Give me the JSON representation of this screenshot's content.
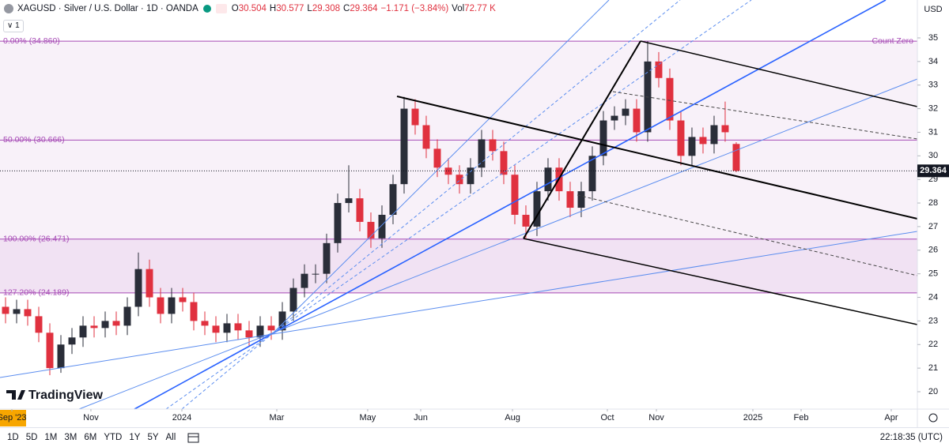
{
  "header": {
    "symbol": "XAGUSD · Silver / U.S. Dollar · 1D · OANDA",
    "quote": [
      {
        "key": "O",
        "text": "30.504"
      },
      {
        "key": "H",
        "text": "30.577"
      },
      {
        "key": "L",
        "text": "29.308"
      },
      {
        "key": "C",
        "text": "29.364"
      },
      {
        "text": "−1.171 (−3.84%)"
      },
      {
        "key": "Vol",
        "text": "72.77 K"
      }
    ],
    "indicator_count": "1"
  },
  "currency": "USD",
  "ranges": [
    "1D",
    "5D",
    "1M",
    "3M",
    "6M",
    "YTD",
    "1Y",
    "5Y",
    "All"
  ],
  "clock": "22:18:35 (UTC)",
  "logo": "TradingView",
  "chart_data": {
    "type": "candlestick",
    "open": [
      23.6,
      23.3,
      23.5,
      23.2,
      22.5,
      21.0,
      22.0,
      22.3,
      22.8,
      22.7,
      23.0,
      22.8,
      23.6,
      25.2,
      24.0,
      23.3,
      24.0,
      23.8,
      23.0,
      22.8,
      22.5,
      22.9,
      22.6,
      22.3,
      22.8,
      22.6,
      23.4,
      24.4,
      25.0,
      25.0,
      26.3,
      28.0,
      28.2,
      27.2,
      26.5,
      27.5,
      28.8,
      32.0,
      31.3,
      30.3,
      29.5,
      29.2,
      28.8,
      29.5,
      30.7,
      30.2,
      29.2,
      27.5,
      27.0,
      28.5,
      29.5,
      28.5,
      27.8,
      28.5,
      30.0,
      31.5,
      31.7,
      32.0,
      31.0,
      34.0,
      33.3,
      31.5,
      30.0,
      30.8,
      30.5,
      31.3,
      30.504
    ],
    "high": [
      24.0,
      23.9,
      23.9,
      23.6,
      22.9,
      22.4,
      22.7,
      23.2,
      23.2,
      23.4,
      23.4,
      24.0,
      25.9,
      25.6,
      24.4,
      24.4,
      24.4,
      24.2,
      23.4,
      23.2,
      23.3,
      23.3,
      23.0,
      23.2,
      23.2,
      23.8,
      24.8,
      25.4,
      25.4,
      26.7,
      28.4,
      29.6,
      28.6,
      27.6,
      27.9,
      29.2,
      32.5,
      32.4,
      31.7,
      30.7,
      29.9,
      29.6,
      29.9,
      31.1,
      31.1,
      30.6,
      29.6,
      27.9,
      28.9,
      29.9,
      29.9,
      28.9,
      28.9,
      30.4,
      31.9,
      32.1,
      32.4,
      32.4,
      34.86,
      34.4,
      33.7,
      31.9,
      31.2,
      31.2,
      31.7,
      32.3,
      30.577
    ],
    "low": [
      22.9,
      22.9,
      22.8,
      22.1,
      20.7,
      20.8,
      21.6,
      21.9,
      22.3,
      22.3,
      22.4,
      22.4,
      23.2,
      23.6,
      22.9,
      22.9,
      23.4,
      22.6,
      22.4,
      22.1,
      22.1,
      22.2,
      21.9,
      21.9,
      22.2,
      22.2,
      23.0,
      24.0,
      24.6,
      24.6,
      25.9,
      27.6,
      26.8,
      26.1,
      26.1,
      27.1,
      28.4,
      30.9,
      29.9,
      29.1,
      28.8,
      28.4,
      28.4,
      29.1,
      29.8,
      28.8,
      27.1,
      26.5,
      26.6,
      28.1,
      28.1,
      27.4,
      27.4,
      28.1,
      29.6,
      31.1,
      31.3,
      30.6,
      30.6,
      32.9,
      31.1,
      29.6,
      29.6,
      30.1,
      30.1,
      30.6,
      29.308
    ],
    "close": [
      23.3,
      23.5,
      23.2,
      22.5,
      21.0,
      22.0,
      22.3,
      22.8,
      22.7,
      23.0,
      22.8,
      23.6,
      25.2,
      24.0,
      23.3,
      24.0,
      23.8,
      23.0,
      22.8,
      22.5,
      22.9,
      22.6,
      22.3,
      22.8,
      22.6,
      23.4,
      24.4,
      25.0,
      25.0,
      26.3,
      28.0,
      28.2,
      27.2,
      26.5,
      27.5,
      28.8,
      32.0,
      31.3,
      30.3,
      29.5,
      29.2,
      28.8,
      29.5,
      30.7,
      30.2,
      29.2,
      27.5,
      27.0,
      28.5,
      29.5,
      28.5,
      27.8,
      28.5,
      30.0,
      31.5,
      31.7,
      32.0,
      31.0,
      34.0,
      33.3,
      31.5,
      30.0,
      30.8,
      30.5,
      31.3,
      31.0,
      29.364
    ],
    "up_color": "#2a2e39",
    "down_color": "#e0313f",
    "xlim": [
      0,
      82.86
    ],
    "xticks": [
      {
        "value": 1.07,
        "label": "Sep '23"
      },
      {
        "value": 8.21,
        "label": "Nov"
      },
      {
        "value": 16.43,
        "label": "2024"
      },
      {
        "value": 25,
        "label": "Mar"
      },
      {
        "value": 33.21,
        "label": "May"
      },
      {
        "value": 38,
        "label": "Jun"
      },
      {
        "value": 46.29,
        "label": "Aug"
      },
      {
        "value": 54.86,
        "label": "Oct"
      },
      {
        "value": 59.29,
        "label": "Nov"
      },
      {
        "value": 68,
        "label": "2025"
      },
      {
        "value": 72.36,
        "label": "Feb"
      },
      {
        "value": 80.5,
        "label": "Apr"
      }
    ],
    "ylim": [
      19.263,
      36.607
    ],
    "yticks": [
      20,
      21,
      22,
      23,
      24,
      25,
      26,
      27,
      28,
      29,
      30,
      31,
      32,
      33,
      34,
      35
    ],
    "fib_color": "#a64ab5",
    "fib_levels": [
      {
        "value": 34.86,
        "label": "0.00% (34.860)"
      },
      {
        "value": 30.666,
        "label": "50.00% (30.666)"
      },
      {
        "value": 26.471,
        "label": "100.00% (26.471)"
      },
      {
        "value": 24.189,
        "label": "127.20% (24.189)"
      }
    ],
    "fib_note": "Count Zero"
  }
}
